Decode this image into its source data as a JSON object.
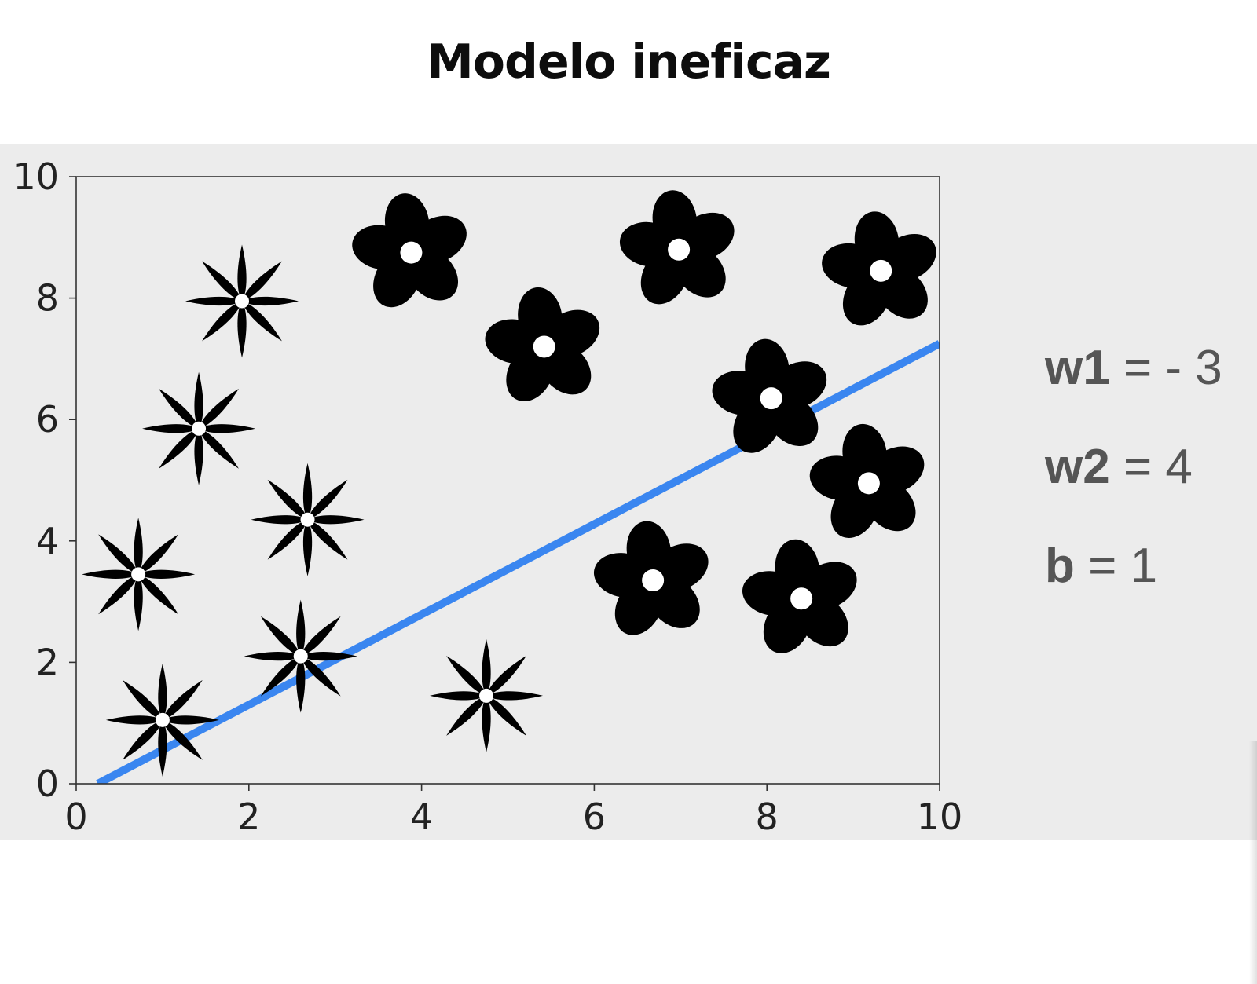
{
  "title": "Modelo ineficaz",
  "params": [
    {
      "name": "w1",
      "eq": "=",
      "value": "- 3"
    },
    {
      "name": "w2",
      "eq": "=",
      "value": "4"
    },
    {
      "name": "b",
      "eq": "=",
      "value": "1"
    }
  ],
  "chart_data": {
    "type": "scatter",
    "title": "",
    "xlabel": "",
    "ylabel": "",
    "xlim": [
      0,
      10
    ],
    "ylim": [
      0,
      10
    ],
    "xticks": [
      "0",
      "2",
      "4",
      "6",
      "8",
      "10"
    ],
    "yticks": [
      "0",
      "2",
      "4",
      "6",
      "8",
      "10"
    ],
    "grid": false,
    "colors": {
      "line": "#3a86f0",
      "markers": "#000000",
      "background": "#ececec"
    },
    "series": [
      {
        "marker": "star-flower",
        "points": [
          [
            1.0,
            1.05
          ],
          [
            0.72,
            3.45
          ],
          [
            1.42,
            5.85
          ],
          [
            1.92,
            7.95
          ],
          [
            2.68,
            4.35
          ],
          [
            2.6,
            2.1
          ],
          [
            4.75,
            1.45
          ]
        ]
      },
      {
        "marker": "round-flower",
        "points": [
          [
            3.88,
            8.75
          ],
          [
            5.42,
            7.2
          ],
          [
            6.98,
            8.8
          ],
          [
            9.32,
            8.45
          ],
          [
            8.05,
            6.35
          ],
          [
            9.18,
            4.95
          ],
          [
            6.68,
            3.35
          ],
          [
            8.4,
            3.05
          ]
        ]
      }
    ],
    "line": {
      "x": [
        0.25,
        10
      ],
      "y": [
        0,
        7.25
      ]
    }
  }
}
